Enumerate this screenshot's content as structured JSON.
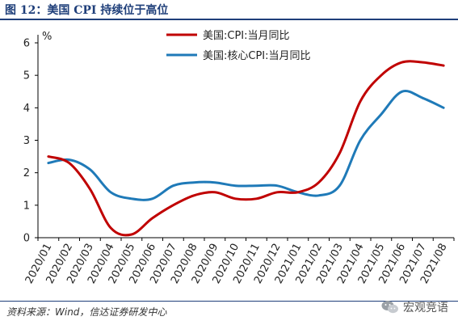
{
  "title": "图 12：美国 CPI 持续位于高位",
  "source": "资料来源：Wind，信达证券研发中心",
  "watermark": "宏观竞语",
  "chart_data": {
    "type": "line",
    "x": [
      "2020/01",
      "2020/02",
      "2020/03",
      "2020/04",
      "2020/05",
      "2020/06",
      "2020/07",
      "2020/08",
      "2020/09",
      "2020/10",
      "2020/11",
      "2020/12",
      "2021/01",
      "2021/02",
      "2021/03",
      "2021/04",
      "2021/05",
      "2021/06",
      "2021/07",
      "2021/08"
    ],
    "ylim": [
      0,
      6
    ],
    "yticks": [
      0,
      1,
      2,
      3,
      4,
      5,
      6
    ],
    "ylabel": "%",
    "legend_position": "top-right",
    "grid": false,
    "series": [
      {
        "name": "美国:CPI:当月同比",
        "color": "#c00000",
        "values": [
          2.5,
          2.3,
          1.5,
          0.3,
          0.1,
          0.6,
          1.0,
          1.3,
          1.4,
          1.2,
          1.2,
          1.4,
          1.4,
          1.7,
          2.6,
          4.2,
          5.0,
          5.4,
          5.4,
          5.3
        ]
      },
      {
        "name": "美国:核心CPI:当月同比",
        "color": "#1f7ab8",
        "values": [
          2.3,
          2.4,
          2.1,
          1.4,
          1.2,
          1.2,
          1.6,
          1.7,
          1.7,
          1.6,
          1.6,
          1.6,
          1.4,
          1.3,
          1.6,
          3.0,
          3.8,
          4.5,
          4.3,
          4.0
        ]
      }
    ]
  }
}
